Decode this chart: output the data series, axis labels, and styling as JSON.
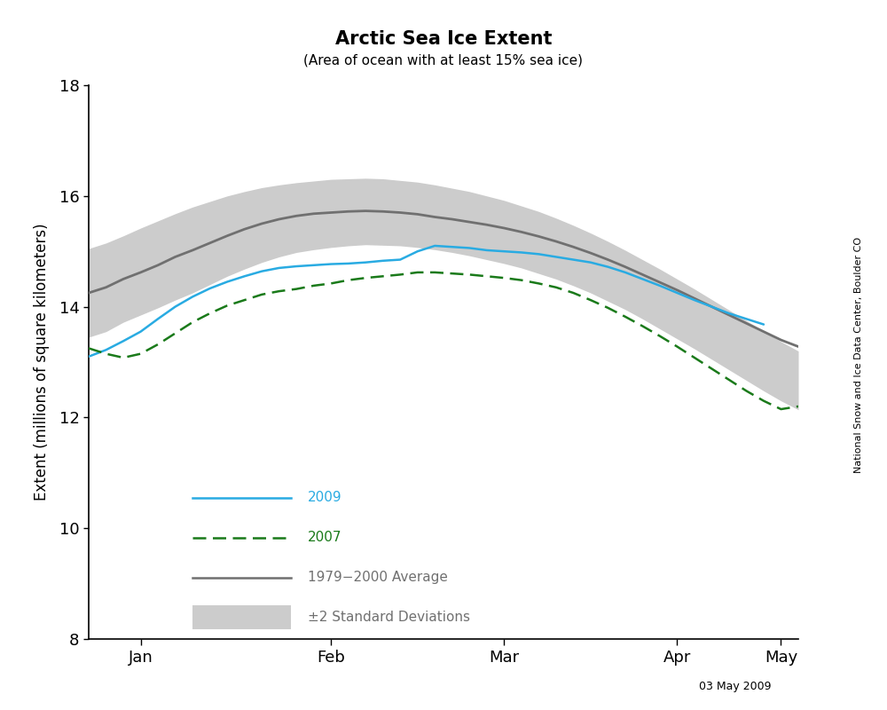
{
  "title": "Arctic Sea Ice Extent",
  "subtitle": "(Area of ocean with at least 15% sea ice)",
  "ylabel": "Extent (millions of square kilometers)",
  "watermark": "National Snow and Ice Data Center, Boulder CO",
  "date_label": "03 May 2009",
  "ylim": [
    8,
    18
  ],
  "yticks": [
    8,
    10,
    12,
    14,
    16,
    18
  ],
  "colors": {
    "year2009": "#29ABE2",
    "year2007": "#1A7A1A",
    "average": "#707070",
    "std_fill": "#CCCCCC",
    "background": "#FFFFFF"
  },
  "avg_data": {
    "x": [
      0,
      3,
      6,
      9,
      12,
      15,
      18,
      21,
      24,
      27,
      30,
      33,
      36,
      39,
      42,
      45,
      48,
      51,
      54,
      57,
      60,
      63,
      66,
      69,
      72,
      75,
      78,
      81,
      84,
      87,
      90,
      93,
      96,
      99,
      102,
      105,
      108,
      111,
      114,
      117,
      120,
      123
    ],
    "y": [
      14.25,
      14.35,
      14.5,
      14.62,
      14.75,
      14.9,
      15.02,
      15.15,
      15.28,
      15.4,
      15.5,
      15.58,
      15.64,
      15.68,
      15.7,
      15.72,
      15.73,
      15.72,
      15.7,
      15.67,
      15.62,
      15.58,
      15.53,
      15.48,
      15.42,
      15.35,
      15.27,
      15.18,
      15.08,
      14.97,
      14.85,
      14.72,
      14.58,
      14.44,
      14.3,
      14.15,
      14.0,
      13.85,
      13.7,
      13.55,
      13.4,
      13.28
    ],
    "upper": [
      15.05,
      15.15,
      15.28,
      15.42,
      15.55,
      15.68,
      15.8,
      15.9,
      16.0,
      16.08,
      16.15,
      16.2,
      16.24,
      16.27,
      16.3,
      16.31,
      16.32,
      16.31,
      16.28,
      16.25,
      16.2,
      16.14,
      16.08,
      16.0,
      15.92,
      15.82,
      15.72,
      15.6,
      15.47,
      15.33,
      15.18,
      15.02,
      14.85,
      14.68,
      14.5,
      14.32,
      14.13,
      13.94,
      13.75,
      13.56,
      13.37,
      13.2
    ],
    "lower": [
      13.45,
      13.55,
      13.72,
      13.85,
      13.98,
      14.12,
      14.25,
      14.4,
      14.55,
      14.68,
      14.8,
      14.9,
      14.98,
      15.03,
      15.07,
      15.1,
      15.12,
      15.11,
      15.1,
      15.07,
      15.03,
      14.98,
      14.92,
      14.85,
      14.78,
      14.7,
      14.6,
      14.5,
      14.38,
      14.25,
      14.1,
      13.95,
      13.78,
      13.6,
      13.42,
      13.24,
      13.05,
      12.86,
      12.67,
      12.48,
      12.3,
      12.14
    ]
  },
  "data2009": {
    "x": [
      0,
      3,
      6,
      9,
      12,
      15,
      18,
      21,
      24,
      27,
      30,
      33,
      36,
      39,
      42,
      45,
      48,
      51,
      54,
      57,
      60,
      63,
      66,
      69,
      72,
      75,
      78,
      81,
      84,
      87,
      90,
      93,
      96,
      99,
      102,
      105,
      108,
      111,
      114,
      117
    ],
    "y": [
      13.1,
      13.22,
      13.38,
      13.55,
      13.78,
      14.0,
      14.18,
      14.33,
      14.45,
      14.55,
      14.64,
      14.7,
      14.73,
      14.75,
      14.77,
      14.78,
      14.8,
      14.83,
      14.85,
      15.0,
      15.1,
      15.08,
      15.06,
      15.02,
      15.0,
      14.98,
      14.95,
      14.9,
      14.85,
      14.8,
      14.72,
      14.62,
      14.5,
      14.38,
      14.25,
      14.12,
      14.0,
      13.88,
      13.78,
      13.68
    ]
  },
  "data2007": {
    "x": [
      0,
      3,
      6,
      9,
      12,
      15,
      18,
      21,
      24,
      27,
      30,
      33,
      36,
      39,
      42,
      45,
      48,
      51,
      54,
      57,
      60,
      63,
      66,
      69,
      72,
      75,
      78,
      81,
      84,
      87,
      90,
      93,
      96,
      99,
      102,
      105,
      108,
      111,
      114,
      117,
      120,
      123
    ],
    "y": [
      13.25,
      13.15,
      13.08,
      13.15,
      13.32,
      13.52,
      13.72,
      13.88,
      14.02,
      14.12,
      14.22,
      14.28,
      14.32,
      14.38,
      14.42,
      14.48,
      14.52,
      14.55,
      14.58,
      14.62,
      14.62,
      14.6,
      14.58,
      14.55,
      14.52,
      14.48,
      14.42,
      14.35,
      14.25,
      14.12,
      13.98,
      13.82,
      13.65,
      13.47,
      13.28,
      13.08,
      12.88,
      12.68,
      12.48,
      12.3,
      12.15,
      12.2
    ]
  },
  "x_ticks": {
    "positions": [
      9,
      42,
      72,
      102,
      120
    ],
    "labels": [
      "Jan",
      "Feb",
      "Mar",
      "Apr",
      "May"
    ]
  },
  "legend_items": [
    {
      "label": "2009",
      "type": "line",
      "color": "#29ABE2",
      "linestyle": "solid"
    },
    {
      "label": "2007",
      "type": "line",
      "color": "#1A7A1A",
      "linestyle": "dashed"
    },
    {
      "label": "1979−2000 Average",
      "type": "line",
      "color": "#707070",
      "linestyle": "solid"
    },
    {
      "label": "±2 Standard Deviations",
      "type": "patch",
      "color": "#CCCCCC"
    }
  ]
}
